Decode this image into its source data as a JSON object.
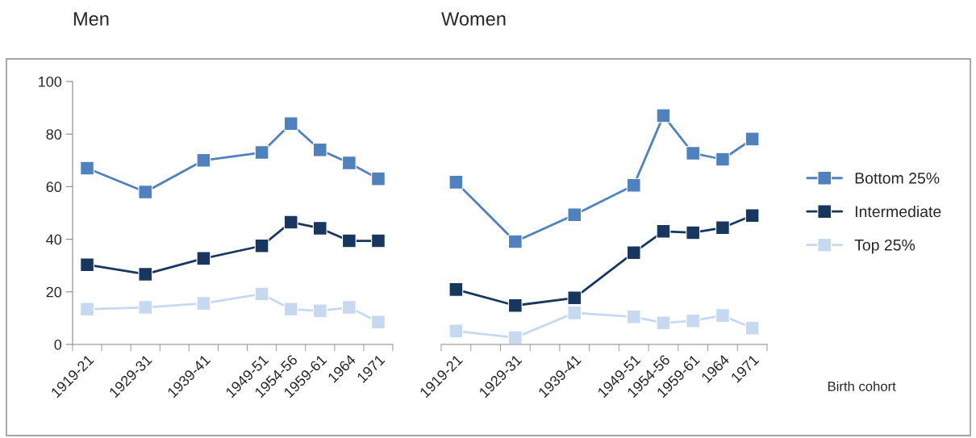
{
  "chart_data": [
    {
      "type": "line",
      "title": "Men",
      "categories": [
        "1919-21",
        null,
        "1929-31",
        null,
        "1939-41",
        null,
        "1949-51",
        "1954-56",
        "1959-61",
        "1964",
        "1971"
      ],
      "ylim": [
        0,
        100
      ],
      "yticks": [
        0,
        20,
        40,
        60,
        80,
        100
      ],
      "grid": false,
      "legend": false,
      "marker": "square",
      "line_style": "solid",
      "series": [
        {
          "color": "#4f81bd",
          "values": [
            67,
            null,
            58,
            null,
            70,
            null,
            73,
            84,
            74,
            69,
            63
          ]
        },
        {
          "color": "#17375e",
          "values": [
            30.3,
            null,
            26.7,
            null,
            32.7,
            null,
            37.5,
            46.5,
            44.2,
            39.4,
            39.4
          ]
        },
        {
          "color": "#c6d9f1",
          "values": [
            13.4,
            null,
            14.1,
            null,
            15.6,
            null,
            19.2,
            13.4,
            12.8,
            14.1,
            8.5
          ]
        }
      ]
    },
    {
      "type": "line",
      "title": "Women",
      "xlabel": "Birth cohort",
      "categories": [
        "1919-21",
        null,
        "1929-31",
        null,
        "1939-41",
        null,
        "1949-51",
        "1954-56",
        "1959-61",
        "1964",
        "1971"
      ],
      "ylim": [
        0,
        100
      ],
      "tick_labels": "x",
      "grid": false,
      "legend": "right",
      "marker": "square",
      "line_style": "solid",
      "series": [
        {
          "name": "Bottom 25%",
          "color": "#4f81bd",
          "values": [
            61.7,
            null,
            39.1,
            null,
            49.3,
            null,
            60.5,
            87,
            72.7,
            70.4,
            78.1
          ]
        },
        {
          "name": "Intermediate",
          "color": "#17375e",
          "values": [
            20.9,
            null,
            14.8,
            null,
            17.7,
            null,
            34.9,
            43,
            42.5,
            44.4,
            49
          ]
        },
        {
          "name": "Top 25%",
          "color": "#c6d9f1",
          "values": [
            5.1,
            null,
            2.6,
            null,
            12,
            null,
            10.5,
            8.2,
            9,
            11,
            6.2
          ]
        }
      ]
    }
  ]
}
